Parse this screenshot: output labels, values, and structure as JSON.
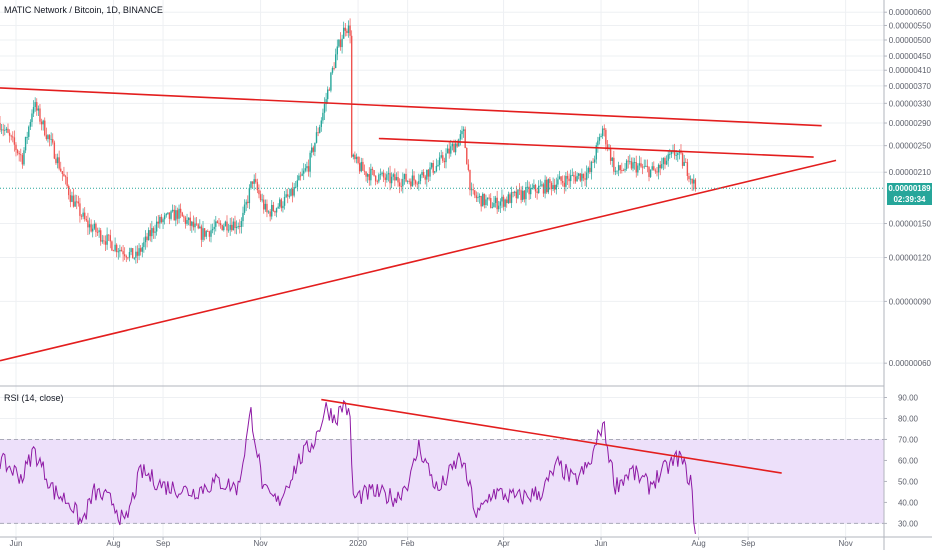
{
  "price_pane": {
    "title": "MATIC Network / Bitcoin, 1D, BINANCE",
    "last_price": "0.00000189",
    "countdown": "02:39:34",
    "tag_color": "#26a69a"
  },
  "rsi_pane": {
    "title": "RSI (14, close)"
  },
  "colors": {
    "up": "#26a69a",
    "down": "#ef5350",
    "trendline": "#e31e1e",
    "rsi_line": "#8e1aa5",
    "rsi_band": "#ede0fa",
    "grid": "#eef0f3"
  },
  "chart_data": [
    {
      "type": "candlestick",
      "title": "MATIC Network / Bitcoin, 1D, BINANCE",
      "y_tick_labels": [
        "0.00000600",
        "0.00000550",
        "0.00000500",
        "0.00000450",
        "0.00000410",
        "0.00000370",
        "0.00000330",
        "0.00000290",
        "0.00000250",
        "0.00000210",
        "0.00000150",
        "0.00000120",
        "0.00000090",
        "0.00000060"
      ],
      "y_scale": "log",
      "y_range": [
        5.2e-07,
        6.5e-06
      ],
      "x_tick_labels": [
        "Jun",
        "Aug",
        "Sep",
        "Nov",
        "2020",
        "Feb",
        "Apr",
        "Jun",
        "Aug",
        "Sep",
        "Nov"
      ],
      "x_range": [
        "2019-05-22",
        "2020-11-25"
      ],
      "x_ticks": [
        "2019-06-01",
        "2019-08-01",
        "2019-09-01",
        "2019-11-01",
        "2020-01-01",
        "2020-02-01",
        "2020-04-01",
        "2020-06-01",
        "2020-08-01",
        "2020-09-01",
        "2020-11-01"
      ],
      "last_value": 1.89e-06,
      "price_keypoints": [
        [
          "2019-05-22",
          2.9e-06
        ],
        [
          "2019-06-05",
          2.3e-06
        ],
        [
          "2019-06-12",
          3.3e-06
        ],
        [
          "2019-06-25",
          2.4e-06
        ],
        [
          "2019-07-05",
          1.8e-06
        ],
        [
          "2019-07-15",
          1.5e-06
        ],
        [
          "2019-08-01",
          1.3e-06
        ],
        [
          "2019-08-15",
          1.2e-06
        ],
        [
          "2019-08-28",
          1.5e-06
        ],
        [
          "2019-09-10",
          1.6e-06
        ],
        [
          "2019-09-25",
          1.4e-06
        ],
        [
          "2019-10-10",
          1.5e-06
        ],
        [
          "2019-10-20",
          1.5e-06
        ],
        [
          "2019-10-27",
          2e-06
        ],
        [
          "2019-11-05",
          1.6e-06
        ],
        [
          "2019-11-20",
          1.8e-06
        ],
        [
          "2019-12-01",
          2.2e-06
        ],
        [
          "2019-12-10",
          3.1e-06
        ],
        [
          "2019-12-18",
          4.5e-06
        ],
        [
          "2019-12-24",
          5.5e-06
        ],
        [
          "2019-12-27",
          5.3e-06
        ],
        [
          "2019-12-28",
          2.3e-06
        ],
        [
          "2020-01-05",
          2.1e-06
        ],
        [
          "2020-01-20",
          2e-06
        ],
        [
          "2020-02-05",
          2e-06
        ],
        [
          "2020-02-20",
          2.2e-06
        ],
        [
          "2020-03-07",
          2.7e-06
        ],
        [
          "2020-03-12",
          1.8e-06
        ],
        [
          "2020-03-25",
          1.7e-06
        ],
        [
          "2020-04-10",
          1.8e-06
        ],
        [
          "2020-04-25",
          1.9e-06
        ],
        [
          "2020-05-10",
          2e-06
        ],
        [
          "2020-05-25",
          2.1e-06
        ],
        [
          "2020-06-02",
          2.8e-06
        ],
        [
          "2020-06-10",
          2.1e-06
        ],
        [
          "2020-06-20",
          2.2e-06
        ],
        [
          "2020-07-05",
          2.1e-06
        ],
        [
          "2020-07-18",
          2.4e-06
        ],
        [
          "2020-07-26",
          2.1e-06
        ],
        [
          "2020-07-30",
          1.9e-06
        ]
      ],
      "drawn_trendlines": [
        {
          "from": [
            "2019-05-22",
            3.65e-06
          ],
          "to": [
            "2020-10-17",
            2.85e-06
          ]
        },
        {
          "from": [
            "2020-01-14",
            2.62e-06
          ],
          "to": [
            "2020-10-12",
            2.32e-06
          ]
        },
        {
          "from": [
            "2019-05-22",
            6.1e-07
          ],
          "to": [
            "2020-10-26",
            2.27e-06
          ]
        }
      ]
    },
    {
      "type": "line",
      "title": "RSI (14, close)",
      "y_tick_labels": [
        "90.00",
        "80.00",
        "70.00",
        "60.00",
        "50.00",
        "40.00",
        "30.00"
      ],
      "y_range": [
        24,
        95
      ],
      "band": [
        30,
        70
      ],
      "series": [
        {
          "points": [
            [
              "2019-05-22",
              60
            ],
            [
              "2019-06-05",
              52
            ],
            [
              "2019-06-12",
              65
            ],
            [
              "2019-06-25",
              45
            ],
            [
              "2019-07-05",
              40
            ],
            [
              "2019-07-12",
              30
            ],
            [
              "2019-07-20",
              45
            ],
            [
              "2019-08-01",
              40
            ],
            [
              "2019-08-08",
              29
            ],
            [
              "2019-08-18",
              55
            ],
            [
              "2019-09-01",
              48
            ],
            [
              "2019-09-20",
              45
            ],
            [
              "2019-10-05",
              50
            ],
            [
              "2019-10-18",
              47
            ],
            [
              "2019-10-26",
              83
            ],
            [
              "2019-11-03",
              45
            ],
            [
              "2019-11-12",
              40
            ],
            [
              "2019-11-25",
              60
            ],
            [
              "2019-12-05",
              70
            ],
            [
              "2019-12-12",
              85
            ],
            [
              "2019-12-18",
              80
            ],
            [
              "2019-12-24",
              88
            ],
            [
              "2019-12-27",
              78
            ],
            [
              "2019-12-29",
              42
            ],
            [
              "2020-01-10",
              45
            ],
            [
              "2020-01-25",
              42
            ],
            [
              "2020-02-03",
              52
            ],
            [
              "2020-02-08",
              67
            ],
            [
              "2020-02-20",
              45
            ],
            [
              "2020-03-05",
              62
            ],
            [
              "2020-03-12",
              44
            ],
            [
              "2020-03-15",
              33
            ],
            [
              "2020-03-25",
              45
            ],
            [
              "2020-04-10",
              42
            ],
            [
              "2020-04-25",
              45
            ],
            [
              "2020-05-05",
              58
            ],
            [
              "2020-05-15",
              50
            ],
            [
              "2020-05-25",
              58
            ],
            [
              "2020-06-02",
              78
            ],
            [
              "2020-06-10",
              48
            ],
            [
              "2020-06-20",
              55
            ],
            [
              "2020-07-01",
              48
            ],
            [
              "2020-07-10",
              55
            ],
            [
              "2020-07-20",
              62
            ],
            [
              "2020-07-27",
              50
            ],
            [
              "2020-07-30",
              26
            ]
          ]
        }
      ],
      "drawn_trendlines": [
        {
          "from": [
            "2019-12-09",
            89
          ],
          "to": [
            "2020-09-22",
            54
          ]
        }
      ]
    }
  ]
}
